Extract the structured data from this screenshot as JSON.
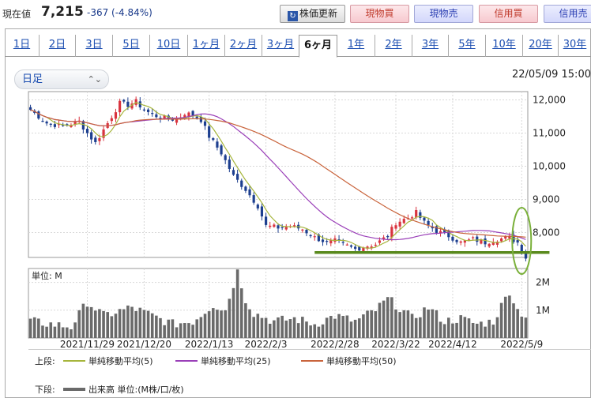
{
  "header": {
    "price_label": "現在値",
    "price_value": "7,215",
    "price_change": "-367 (-4.84%)",
    "refresh_label": "株価更新",
    "buttons": [
      "現物買",
      "現物売",
      "信用買",
      "信用売"
    ]
  },
  "tabs": [
    "1日",
    "2日",
    "3日",
    "5日",
    "10日",
    "1ヶ月",
    "2ヶ月",
    "3ヶ月",
    "6ヶ月",
    "1年",
    "2年",
    "3年",
    "5年",
    "10年",
    "20年",
    "30年"
  ],
  "active_tab": "6ヶ月",
  "selector": {
    "value": "日足"
  },
  "timestamp": "22/05/09 15:00",
  "chart_data": {
    "type": "candlestick+bar",
    "price_axis": {
      "ylim": [
        7250,
        12250
      ],
      "ticks": [
        8000,
        9000,
        10000,
        11000,
        12000
      ],
      "tick_labels": [
        "8,000",
        "9,000",
        "10,000",
        "11,000",
        "12,000"
      ]
    },
    "volume_axis": {
      "ylim": [
        0,
        2500000
      ],
      "ticks": [
        1000000,
        2000000
      ],
      "tick_labels": [
        "1M",
        "2M"
      ],
      "label": "単位: M"
    },
    "x_tick_labels": [
      "2021/11/29",
      "2021/12/20",
      "2022/1/13",
      "2022/2/3",
      "2022/2/28",
      "2022/3/22",
      "2022/4/12",
      "2022/5/9"
    ],
    "x_tick_positions": [
      14,
      28,
      44,
      58,
      75,
      90,
      104,
      121
    ],
    "trading_days": 123,
    "close_anchors": [
      [
        0,
        11700
      ],
      [
        4,
        11300
      ],
      [
        8,
        11200
      ],
      [
        12,
        11350
      ],
      [
        14,
        11000
      ],
      [
        16,
        10700
      ],
      [
        18,
        11100
      ],
      [
        20,
        11500
      ],
      [
        22,
        11900
      ],
      [
        24,
        11850
      ],
      [
        26,
        11950
      ],
      [
        28,
        11700
      ],
      [
        30,
        11550
      ],
      [
        33,
        11450
      ],
      [
        36,
        11400
      ],
      [
        38,
        11600
      ],
      [
        40,
        11550
      ],
      [
        42,
        11400
      ],
      [
        44,
        10900
      ],
      [
        47,
        10400
      ],
      [
        50,
        9700
      ],
      [
        53,
        9300
      ],
      [
        56,
        8800
      ],
      [
        58,
        8200
      ],
      [
        61,
        8150
      ],
      [
        64,
        8200
      ],
      [
        67,
        8100
      ],
      [
        70,
        7850
      ],
      [
        73,
        7700
      ],
      [
        75,
        7750
      ],
      [
        78,
        7600
      ],
      [
        80,
        7500
      ],
      [
        83,
        7600
      ],
      [
        85,
        7650
      ],
      [
        88,
        7900
      ],
      [
        90,
        8300
      ],
      [
        93,
        8450
      ],
      [
        95,
        8600
      ],
      [
        97,
        8300
      ],
      [
        100,
        8050
      ],
      [
        103,
        7900
      ],
      [
        106,
        7700
      ],
      [
        109,
        7800
      ],
      [
        112,
        7700
      ],
      [
        115,
        7800
      ],
      [
        118,
        7850
      ],
      [
        120,
        7700
      ],
      [
        122,
        7215
      ]
    ],
    "volume_anchors": [
      [
        0,
        0.6
      ],
      [
        10,
        0.4
      ],
      [
        14,
        1.3
      ],
      [
        18,
        0.8
      ],
      [
        25,
        1.1
      ],
      [
        30,
        0.8
      ],
      [
        35,
        0.5
      ],
      [
        40,
        0.6
      ],
      [
        45,
        1.2
      ],
      [
        48,
        1.0
      ],
      [
        51,
        2.4
      ],
      [
        53,
        1.4
      ],
      [
        55,
        0.9
      ],
      [
        60,
        0.6
      ],
      [
        65,
        0.7
      ],
      [
        70,
        0.5
      ],
      [
        75,
        0.8
      ],
      [
        80,
        0.6
      ],
      [
        85,
        1.0
      ],
      [
        88,
        1.4
      ],
      [
        90,
        1.2
      ],
      [
        94,
        0.7
      ],
      [
        98,
        1.1
      ],
      [
        102,
        0.6
      ],
      [
        106,
        0.7
      ],
      [
        110,
        0.5
      ],
      [
        114,
        0.6
      ],
      [
        118,
        1.7
      ],
      [
        120,
        1.0
      ],
      [
        122,
        0.8
      ]
    ],
    "moving_averages": [
      {
        "name": "単純移動平均(5)",
        "period": 5,
        "color": "#a6b53c"
      },
      {
        "name": "単純移動平均(25)",
        "period": 25,
        "color": "#9a3fb8"
      },
      {
        "name": "単純移動平均(50)",
        "period": 50,
        "color": "#c9643c"
      }
    ],
    "candle_colors": {
      "up": "#d9343f",
      "down": "#1d3f8f"
    },
    "volume_color": "#6a6a6a",
    "annotation": {
      "support_line_price": 7400,
      "support_color": "#5a8a1e",
      "circle_color": "#7ab03a"
    }
  },
  "legend": {
    "upper_label": "上段:",
    "lower_label": "下段:",
    "volume_item": "出来高 単位:(M株/口/枚)"
  }
}
